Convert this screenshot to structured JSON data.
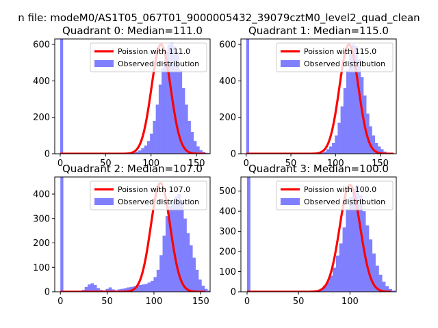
{
  "figure": {
    "suptitle": "n file: modeM0/AS1T05_067T01_9000005432_39079cztM0_level2_quad_clean"
  },
  "colors": {
    "poisson": "#ff0000",
    "observed": "#8080ff",
    "axis": "#000000",
    "background": "#ffffff"
  },
  "chart_data": [
    {
      "type": "bar",
      "title": "Quadrant 0: Median=111.0",
      "median": 111.0,
      "xlim": [
        -6,
        165
      ],
      "ylim": [
        0,
        630
      ],
      "xticks": [
        0,
        50,
        100,
        150
      ],
      "yticks": [
        0,
        200,
        400,
        600
      ],
      "spike": {
        "x": 0,
        "width": 3.2,
        "value": 630
      },
      "observed": {
        "start": 70,
        "bin_width": 3.2,
        "values": [
          2,
          3,
          5,
          8,
          12,
          18,
          30,
          45,
          70,
          110,
          180,
          270,
          380,
          470,
          560,
          600,
          610,
          590,
          560,
          460,
          360,
          270,
          180,
          120,
          70,
          40,
          20,
          10,
          5,
          3,
          2
        ]
      },
      "poisson": {
        "x_range": [
          0,
          160
        ],
        "mean": 111.0,
        "peak": 600
      },
      "legend": [
        "Poission with 111.0",
        "Observed distribution"
      ]
    },
    {
      "type": "bar",
      "title": "Quadrant 1: Median=115.0",
      "median": 115.0,
      "xlim": [
        -6,
        168
      ],
      "ylim": [
        0,
        630
      ],
      "xticks": [
        0,
        50,
        100,
        150
      ],
      "yticks": [
        0,
        200,
        400,
        600
      ],
      "spike": {
        "x": 0,
        "width": 3.2,
        "value": 630
      },
      "observed": {
        "start": 80,
        "bin_width": 3.2,
        "values": [
          3,
          6,
          12,
          25,
          40,
          60,
          100,
          170,
          260,
          360,
          460,
          550,
          600,
          590,
          520,
          420,
          320,
          220,
          150,
          100,
          60,
          40,
          25,
          12,
          6,
          3
        ]
      },
      "poisson": {
        "x_range": [
          0,
          165
        ],
        "mean": 115.0,
        "peak": 600
      },
      "legend": [
        "Poission with 115.0",
        "Observed distribution"
      ]
    },
    {
      "type": "bar",
      "title": "Quadrant 2: Median=107.0",
      "median": 107.0,
      "xlim": [
        -6,
        160
      ],
      "ylim": [
        0,
        470
      ],
      "xticks": [
        0,
        50,
        100,
        150
      ],
      "yticks": [
        0,
        100,
        200,
        300,
        400
      ],
      "spike": {
        "x": 0,
        "width": 3.2,
        "value": 470
      },
      "observed": {
        "start": 10,
        "bin_width": 3.2,
        "values": [
          0,
          0,
          0,
          3,
          8,
          20,
          30,
          35,
          28,
          15,
          8,
          5,
          12,
          18,
          10,
          6,
          10,
          12,
          14,
          18,
          20,
          22,
          25,
          28,
          30,
          32,
          38,
          45,
          60,
          90,
          150,
          230,
          310,
          350,
          370,
          390,
          400,
          370,
          300,
          240,
          190,
          140,
          90,
          50,
          25,
          12,
          5,
          2
        ]
      },
      "poisson": {
        "x_range": [
          0,
          155
        ],
        "mean": 107.0,
        "peak": 445
      },
      "legend": [
        "Poission with 107.0",
        "Observed distribution"
      ]
    },
    {
      "type": "bar",
      "title": "Quadrant 3: Median=100.0",
      "median": 100.0,
      "xlim": [
        -6,
        145
      ],
      "ylim": [
        0,
        570
      ],
      "xticks": [
        0,
        50,
        100
      ],
      "yticks": [
        0,
        100,
        200,
        300,
        400,
        500
      ],
      "spike": {
        "x": 0,
        "width": 3.2,
        "value": 570
      },
      "observed": {
        "start": 64,
        "bin_width": 3.2,
        "values": [
          3,
          8,
          15,
          30,
          50,
          80,
          120,
          180,
          240,
          320,
          410,
          470,
          510,
          530,
          480,
          400,
          330,
          260,
          190,
          130,
          85,
          50,
          28,
          14,
          6,
          2
        ]
      },
      "poisson": {
        "x_range": [
          0,
          140
        ],
        "mean": 100.0,
        "peak": 530
      },
      "legend": [
        "Poission with 100.0",
        "Observed distribution"
      ]
    }
  ]
}
